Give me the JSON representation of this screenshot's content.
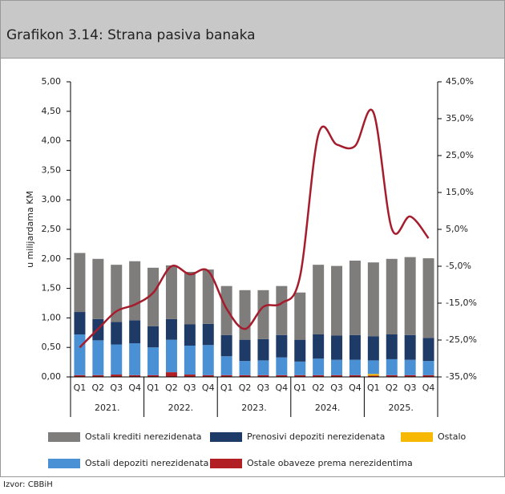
{
  "chart_data": {
    "type": "stacked-bar-line",
    "title": "Grafikon 3.14: Strana pasiva banaka",
    "y_label": "u milijardama KM",
    "source": "Izvor: CBBiH",
    "categories": [
      "Q1",
      "Q2",
      "Q3",
      "Q4",
      "Q1",
      "Q2",
      "Q3",
      "Q4",
      "Q1",
      "Q2",
      "Q3",
      "Q4",
      "Q1",
      "Q2",
      "Q3",
      "Q4",
      "Q1",
      "Q2",
      "Q3",
      "Q4"
    ],
    "year_groups": [
      "2021.",
      "2022.",
      "2023.",
      "2024.",
      "2025."
    ],
    "ylim": [
      0,
      5
    ],
    "yticks": [
      {
        "value": 0,
        "label": "0,00"
      },
      {
        "value": 0.5,
        "label": "0,50"
      },
      {
        "value": 1,
        "label": "1,00"
      },
      {
        "value": 1.5,
        "label": "1,50"
      },
      {
        "value": 2,
        "label": "2,00"
      },
      {
        "value": 2.5,
        "label": "2,50"
      },
      {
        "value": 3,
        "label": "3,00"
      },
      {
        "value": 3.5,
        "label": "3,50"
      },
      {
        "value": 4,
        "label": "4,00"
      },
      {
        "value": 4.5,
        "label": "4,50"
      },
      {
        "value": 5,
        "label": "5,00"
      }
    ],
    "y2lim": [
      -35,
      45
    ],
    "y2ticks": [
      {
        "value": -35,
        "label": "-35,0%"
      },
      {
        "value": -25,
        "label": "-25,0%"
      },
      {
        "value": -15,
        "label": "-15,0%"
      },
      {
        "value": -5,
        "label": "-5,0%"
      },
      {
        "value": 5,
        "label": "5,0%"
      },
      {
        "value": 15,
        "label": "15,0%"
      },
      {
        "value": 25,
        "label": "25,0%"
      },
      {
        "value": 35,
        "label": "35,0%"
      },
      {
        "value": 45,
        "label": "45,0%"
      }
    ],
    "series": [
      {
        "name": "Ostale obaveze prema nerezidentima",
        "color": "#b11f24",
        "values": [
          0.03,
          0.03,
          0.04,
          0.03,
          0.03,
          0.08,
          0.04,
          0.03,
          0.03,
          0.03,
          0.03,
          0.03,
          0.03,
          0.03,
          0.03,
          0.03,
          0.02,
          0.03,
          0.03,
          0.03
        ]
      },
      {
        "name": "Ostalo",
        "color": "#f6b800",
        "values": [
          0,
          0,
          0,
          0,
          0,
          0,
          0,
          0,
          0,
          0,
          0,
          0,
          0,
          0,
          0,
          0,
          0.03,
          0,
          0,
          0
        ]
      },
      {
        "name": "Ostali depoziti nerezidenata",
        "color": "#4a90d4",
        "values": [
          0.69,
          0.59,
          0.51,
          0.54,
          0.47,
          0.55,
          0.49,
          0.51,
          0.32,
          0.24,
          0.25,
          0.3,
          0.23,
          0.28,
          0.26,
          0.26,
          0.23,
          0.27,
          0.26,
          0.24
        ]
      },
      {
        "name": "Prenosivi depoziti nerezidenata",
        "color": "#1e3a66",
        "values": [
          0.38,
          0.36,
          0.38,
          0.39,
          0.36,
          0.35,
          0.36,
          0.36,
          0.36,
          0.36,
          0.36,
          0.38,
          0.37,
          0.41,
          0.41,
          0.42,
          0.41,
          0.42,
          0.42,
          0.39
        ]
      },
      {
        "name": "Ostali krediti nerezidenata",
        "color": "#7f7c7c",
        "values": [
          1.0,
          1.02,
          0.97,
          1.0,
          0.99,
          0.91,
          0.89,
          0.92,
          0.83,
          0.84,
          0.83,
          0.83,
          0.8,
          1.18,
          1.18,
          1.26,
          1.25,
          1.28,
          1.32,
          1.35
        ]
      },
      {
        "color": "#a51d2d",
        "axis": "y2",
        "values": [
          -27,
          -22,
          -17.2,
          -15.4,
          -12.2,
          -5,
          -7.2,
          -6.3,
          -16.5,
          -22,
          -16,
          -15,
          -7.8,
          30.7,
          28,
          27.6,
          36.7,
          5.2,
          8.5,
          2.6
        ]
      }
    ],
    "legend_order": [
      4,
      3,
      1,
      2,
      0
    ]
  }
}
